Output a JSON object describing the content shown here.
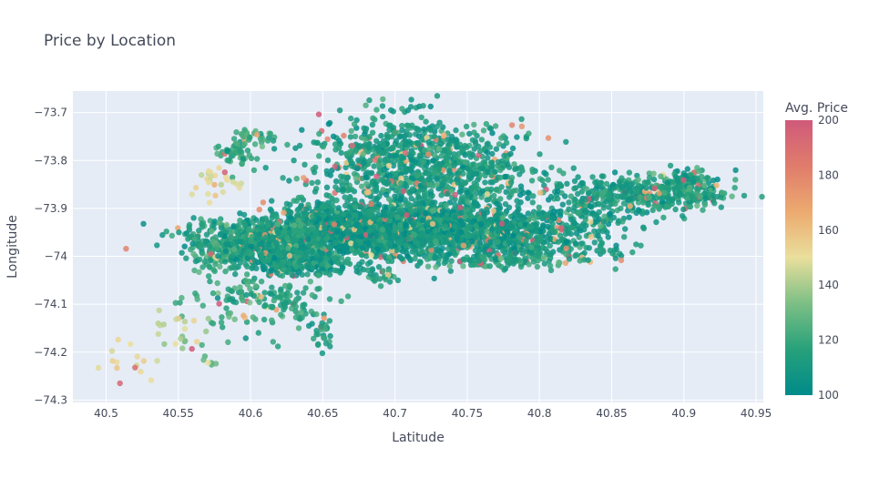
{
  "chart_data": {
    "type": "scatter",
    "title": "Price by Location",
    "xlabel": "Latitude",
    "ylabel": "Longitude",
    "xlim": [
      40.477,
      40.955
    ],
    "ylim": [
      -74.305,
      -73.655
    ],
    "x_ticks": [
      40.5,
      40.55,
      40.6,
      40.65,
      40.7,
      40.75,
      40.8,
      40.85,
      40.9,
      40.95
    ],
    "x_tick_labels": [
      "40.5",
      "40.55",
      "40.6",
      "40.65",
      "40.7",
      "40.75",
      "40.8",
      "40.85",
      "40.9",
      "40.95"
    ],
    "y_ticks": [
      -73.7,
      -73.8,
      -73.9,
      -74,
      -74.1,
      -74.2,
      -74.3
    ],
    "y_tick_labels": [
      "−73.7",
      "−73.8",
      "−73.9",
      "−74",
      "−74.1",
      "−74.2",
      "−74.3"
    ],
    "grid": true,
    "colorbar": {
      "title": "Avg. Price",
      "range": [
        100,
        200
      ],
      "ticks": [
        100,
        120,
        140,
        160,
        180,
        200
      ],
      "tick_labels": [
        "100",
        "120",
        "140",
        "160",
        "180",
        "200"
      ],
      "colorscale": [
        "#008b8a",
        "#27a17a",
        "#7cbf85",
        "#eadf9c",
        "#ecaa6f",
        "#e07c6c",
        "#cf5a7a"
      ]
    },
    "clusters": [
      {
        "x": 40.68,
        "y": -73.955,
        "sx": 0.035,
        "sy": 0.025,
        "n": 900,
        "price": 108
      },
      {
        "x": 40.72,
        "y": -73.93,
        "sx": 0.03,
        "sy": 0.03,
        "n": 600,
        "price": 110
      },
      {
        "x": 40.7,
        "y": -73.8,
        "sx": 0.03,
        "sy": 0.05,
        "n": 600,
        "price": 112
      },
      {
        "x": 40.75,
        "y": -73.82,
        "sx": 0.025,
        "sy": 0.04,
        "n": 350,
        "price": 112
      },
      {
        "x": 40.65,
        "y": -73.93,
        "sx": 0.02,
        "sy": 0.03,
        "n": 300,
        "price": 110
      },
      {
        "x": 40.6,
        "y": -73.96,
        "sx": 0.025,
        "sy": 0.02,
        "n": 350,
        "price": 113
      },
      {
        "x": 40.58,
        "y": -74.0,
        "sx": 0.01,
        "sy": 0.02,
        "n": 80,
        "price": 118
      },
      {
        "x": 40.63,
        "y": -74.02,
        "sx": 0.02,
        "sy": 0.01,
        "n": 200,
        "price": 110
      },
      {
        "x": 40.62,
        "y": -73.99,
        "sx": 0.03,
        "sy": 0.015,
        "n": 200,
        "price": 112
      },
      {
        "x": 40.76,
        "y": -73.95,
        "sx": 0.025,
        "sy": 0.02,
        "n": 250,
        "price": 110
      },
      {
        "x": 40.81,
        "y": -73.93,
        "sx": 0.03,
        "sy": 0.02,
        "n": 250,
        "price": 110
      },
      {
        "x": 40.86,
        "y": -73.87,
        "sx": 0.03,
        "sy": 0.02,
        "n": 300,
        "price": 112
      },
      {
        "x": 40.9,
        "y": -73.86,
        "sx": 0.015,
        "sy": 0.02,
        "n": 200,
        "price": 114
      },
      {
        "x": 40.8,
        "y": -73.98,
        "sx": 0.03,
        "sy": 0.012,
        "n": 150,
        "price": 112
      },
      {
        "x": 40.77,
        "y": -74.01,
        "sx": 0.03,
        "sy": 0.008,
        "n": 120,
        "price": 116
      },
      {
        "x": 40.59,
        "y": -73.79,
        "sx": 0.006,
        "sy": 0.015,
        "n": 50,
        "price": 118
      },
      {
        "x": 40.6,
        "y": -73.75,
        "sx": 0.008,
        "sy": 0.01,
        "n": 30,
        "price": 122
      },
      {
        "x": 40.575,
        "y": -73.84,
        "sx": 0.01,
        "sy": 0.02,
        "n": 25,
        "price": 150
      },
      {
        "x": 40.6,
        "y": -74.08,
        "sx": 0.02,
        "sy": 0.015,
        "n": 70,
        "price": 116
      },
      {
        "x": 40.63,
        "y": -74.1,
        "sx": 0.01,
        "sy": 0.03,
        "n": 50,
        "price": 115
      },
      {
        "x": 40.6,
        "y": -74.13,
        "sx": 0.025,
        "sy": 0.03,
        "n": 40,
        "price": 120
      },
      {
        "x": 40.65,
        "y": -74.16,
        "sx": 0.005,
        "sy": 0.02,
        "n": 25,
        "price": 114
      },
      {
        "x": 40.55,
        "y": -74.16,
        "sx": 0.01,
        "sy": 0.02,
        "n": 20,
        "price": 145
      },
      {
        "x": 40.52,
        "y": -74.22,
        "sx": 0.015,
        "sy": 0.03,
        "n": 15,
        "price": 150
      },
      {
        "x": 40.57,
        "y": -74.22,
        "sx": 0.004,
        "sy": 0.004,
        "n": 6,
        "price": 125
      },
      {
        "x": 40.69,
        "y": -74.04,
        "sx": 0.006,
        "sy": 0.008,
        "n": 25,
        "price": 114
      }
    ]
  }
}
